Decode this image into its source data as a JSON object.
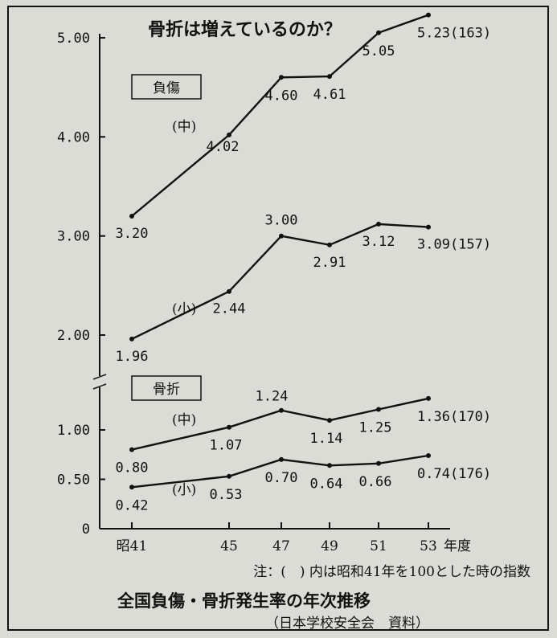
{
  "chart_data": {
    "type": "line",
    "title": "骨折は増えているのか？",
    "categories": [
      "昭41",
      "45",
      "47",
      "49",
      "51",
      "53"
    ],
    "xlabel": "年度",
    "ylabel": "",
    "ylim": [
      0,
      5.0
    ],
    "y_ticks": [
      "0",
      "0.50",
      "1.00",
      "2.00",
      "3.00",
      "4.00",
      "5.00"
    ],
    "y_tick_values": [
      0,
      0.5,
      1.0,
      2.0,
      3.0,
      4.0,
      5.0
    ],
    "y_axis_break": "between 1.00 and 2.00",
    "groups": [
      {
        "label": "負傷",
        "boxed": true
      },
      {
        "label": "骨折",
        "boxed": true
      }
    ],
    "series": [
      {
        "name": "(中)",
        "group": "負傷",
        "values": [
          3.2,
          4.02,
          4.6,
          4.61,
          5.05,
          5.23
        ],
        "data_labels": [
          "3.20",
          "4.02",
          "4.60",
          "4.61",
          "5.05",
          "5.23(163)"
        ]
      },
      {
        "name": "(小)",
        "group": "負傷",
        "values": [
          1.96,
          2.44,
          3.0,
          2.91,
          3.12,
          3.09
        ],
        "data_labels": [
          "1.96",
          "2.44",
          "3.00",
          "2.91",
          "3.12",
          "3.09(157)"
        ]
      },
      {
        "name": "(中)",
        "group": "骨折",
        "values": [
          0.8,
          1.07,
          1.24,
          1.14,
          1.25,
          1.36
        ],
        "data_labels": [
          "0.80",
          "1.07",
          "1.24",
          "1.14",
          "1.25",
          "1.36(170)"
        ]
      },
      {
        "name": "(小)",
        "group": "骨折",
        "values": [
          0.42,
          0.53,
          0.7,
          0.64,
          0.66,
          0.74
        ],
        "data_labels": [
          "0.42",
          "0.53",
          "0.70",
          "0.64",
          "0.66",
          "0.74(176)"
        ]
      }
    ],
    "note": "注：(　) 内は昭和41年を100とした時の指数",
    "caption": "全国負傷・骨折発生率の年次推移",
    "source": "（日本学校安全会　資料）",
    "grid": false,
    "line_color": "#111111",
    "background_color": "#dcdcd6"
  }
}
